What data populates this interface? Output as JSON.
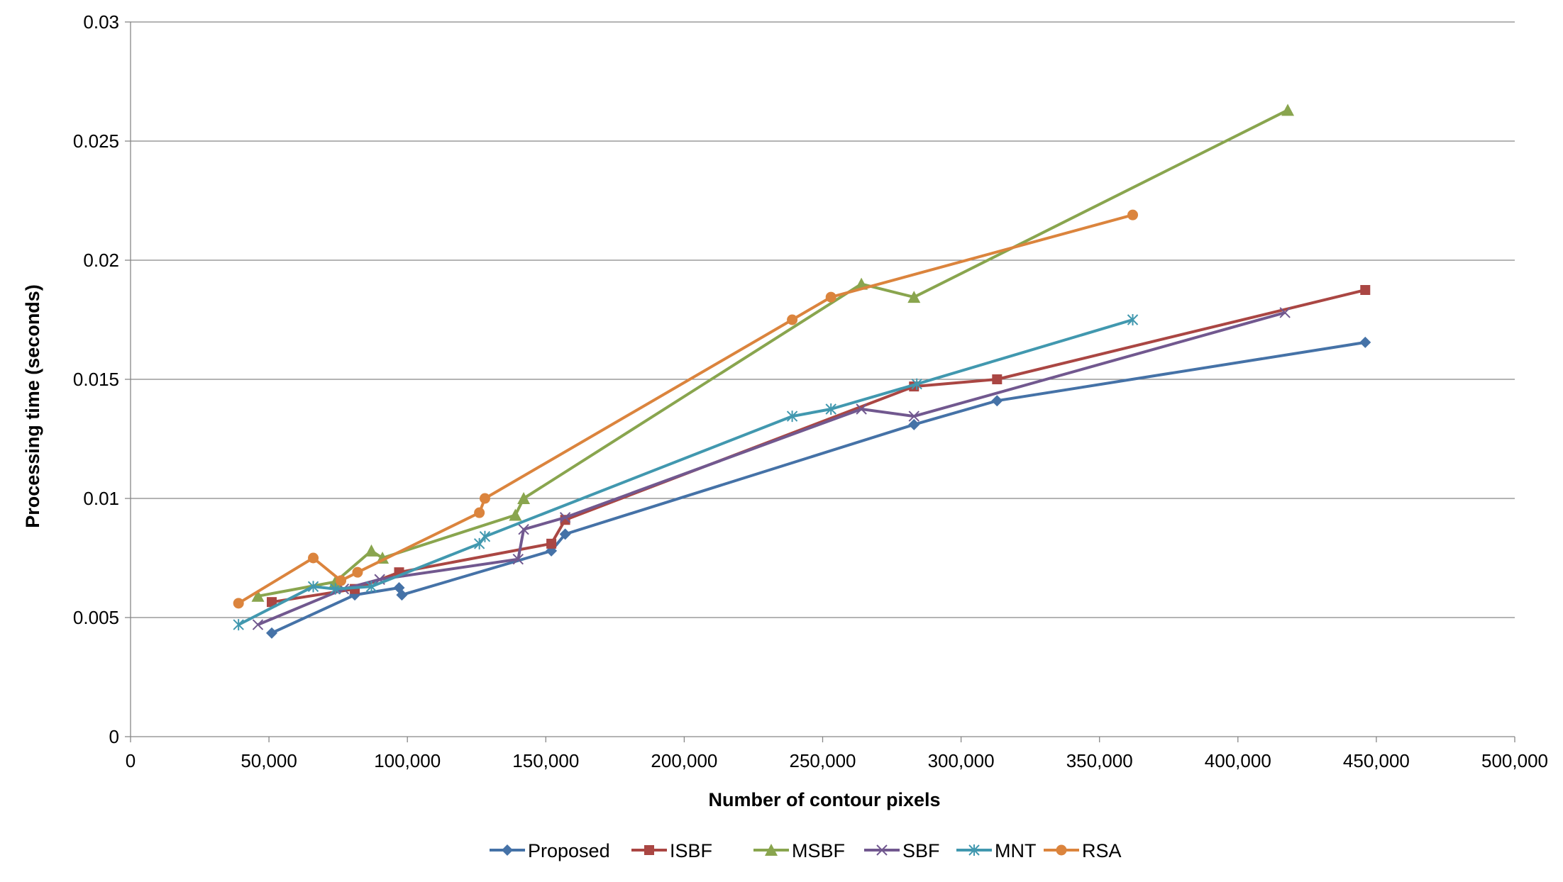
{
  "chart_data": {
    "type": "line",
    "title": "",
    "xlabel": "Number of contour pixels",
    "ylabel": "Processing time (seconds)",
    "xlim": [
      0,
      500000
    ],
    "ylim": [
      0,
      0.03
    ],
    "xticks": [
      "0",
      "50,000",
      "100,000",
      "150,000",
      "200,000",
      "250,000",
      "300,000",
      "350,000",
      "400,000",
      "450,000",
      "500,000"
    ],
    "yticks": [
      "0",
      "0.005",
      "0.01",
      "0.015",
      "0.02",
      "0.025",
      "0.03"
    ],
    "grid": "horizontal",
    "legend_position": "bottom",
    "series": [
      {
        "name": "Proposed",
        "color": "#4572A7",
        "marker": "diamond",
        "points": [
          [
            51000,
            0.00435
          ],
          [
            81000,
            0.00595
          ],
          [
            97000,
            0.00625
          ],
          [
            98000,
            0.00595
          ],
          [
            152000,
            0.0078
          ],
          [
            157000,
            0.0085
          ],
          [
            283000,
            0.0131
          ],
          [
            313000,
            0.0141
          ],
          [
            446000,
            0.01655
          ]
        ]
      },
      {
        "name": "ISBF",
        "color": "#AA4643",
        "marker": "square",
        "points": [
          [
            51000,
            0.00565
          ],
          [
            81000,
            0.0062
          ],
          [
            97000,
            0.0069
          ],
          [
            152000,
            0.0081
          ],
          [
            157000,
            0.0091
          ],
          [
            283000,
            0.0147
          ],
          [
            313000,
            0.015
          ],
          [
            446000,
            0.01875
          ]
        ]
      },
      {
        "name": "MSBF",
        "color": "#89A54E",
        "marker": "triangle",
        "points": [
          [
            46000,
            0.0059
          ],
          [
            74000,
            0.0065
          ],
          [
            87000,
            0.0078
          ],
          [
            91000,
            0.0075
          ],
          [
            139000,
            0.0093
          ],
          [
            142000,
            0.01
          ],
          [
            264000,
            0.019
          ],
          [
            283000,
            0.01845
          ],
          [
            418000,
            0.0263
          ]
        ]
      },
      {
        "name": "SBF",
        "color": "#71588F",
        "marker": "x",
        "points": [
          [
            46000,
            0.0047
          ],
          [
            77000,
            0.0062
          ],
          [
            90000,
            0.0066
          ],
          [
            140000,
            0.00745
          ],
          [
            142000,
            0.0087
          ],
          [
            157000,
            0.0092
          ],
          [
            264000,
            0.01375
          ],
          [
            283000,
            0.01345
          ],
          [
            417000,
            0.0178
          ]
        ]
      },
      {
        "name": "MNT",
        "color": "#4198AF",
        "marker": "asterisk",
        "points": [
          [
            39000,
            0.0047
          ],
          [
            66000,
            0.0063
          ],
          [
            74000,
            0.0062
          ],
          [
            87000,
            0.0063
          ],
          [
            126000,
            0.0081
          ],
          [
            128000,
            0.0084
          ],
          [
            239000,
            0.01345
          ],
          [
            253000,
            0.01375
          ],
          [
            284000,
            0.0148
          ],
          [
            362000,
            0.0175
          ]
        ]
      },
      {
        "name": "RSA",
        "color": "#DB843D",
        "marker": "circle",
        "points": [
          [
            39000,
            0.0056
          ],
          [
            66000,
            0.0075
          ],
          [
            76000,
            0.00655
          ],
          [
            82000,
            0.0069
          ],
          [
            126000,
            0.0094
          ],
          [
            128000,
            0.01
          ],
          [
            239000,
            0.0175
          ],
          [
            253000,
            0.01845
          ],
          [
            362000,
            0.0219
          ]
        ]
      }
    ]
  }
}
